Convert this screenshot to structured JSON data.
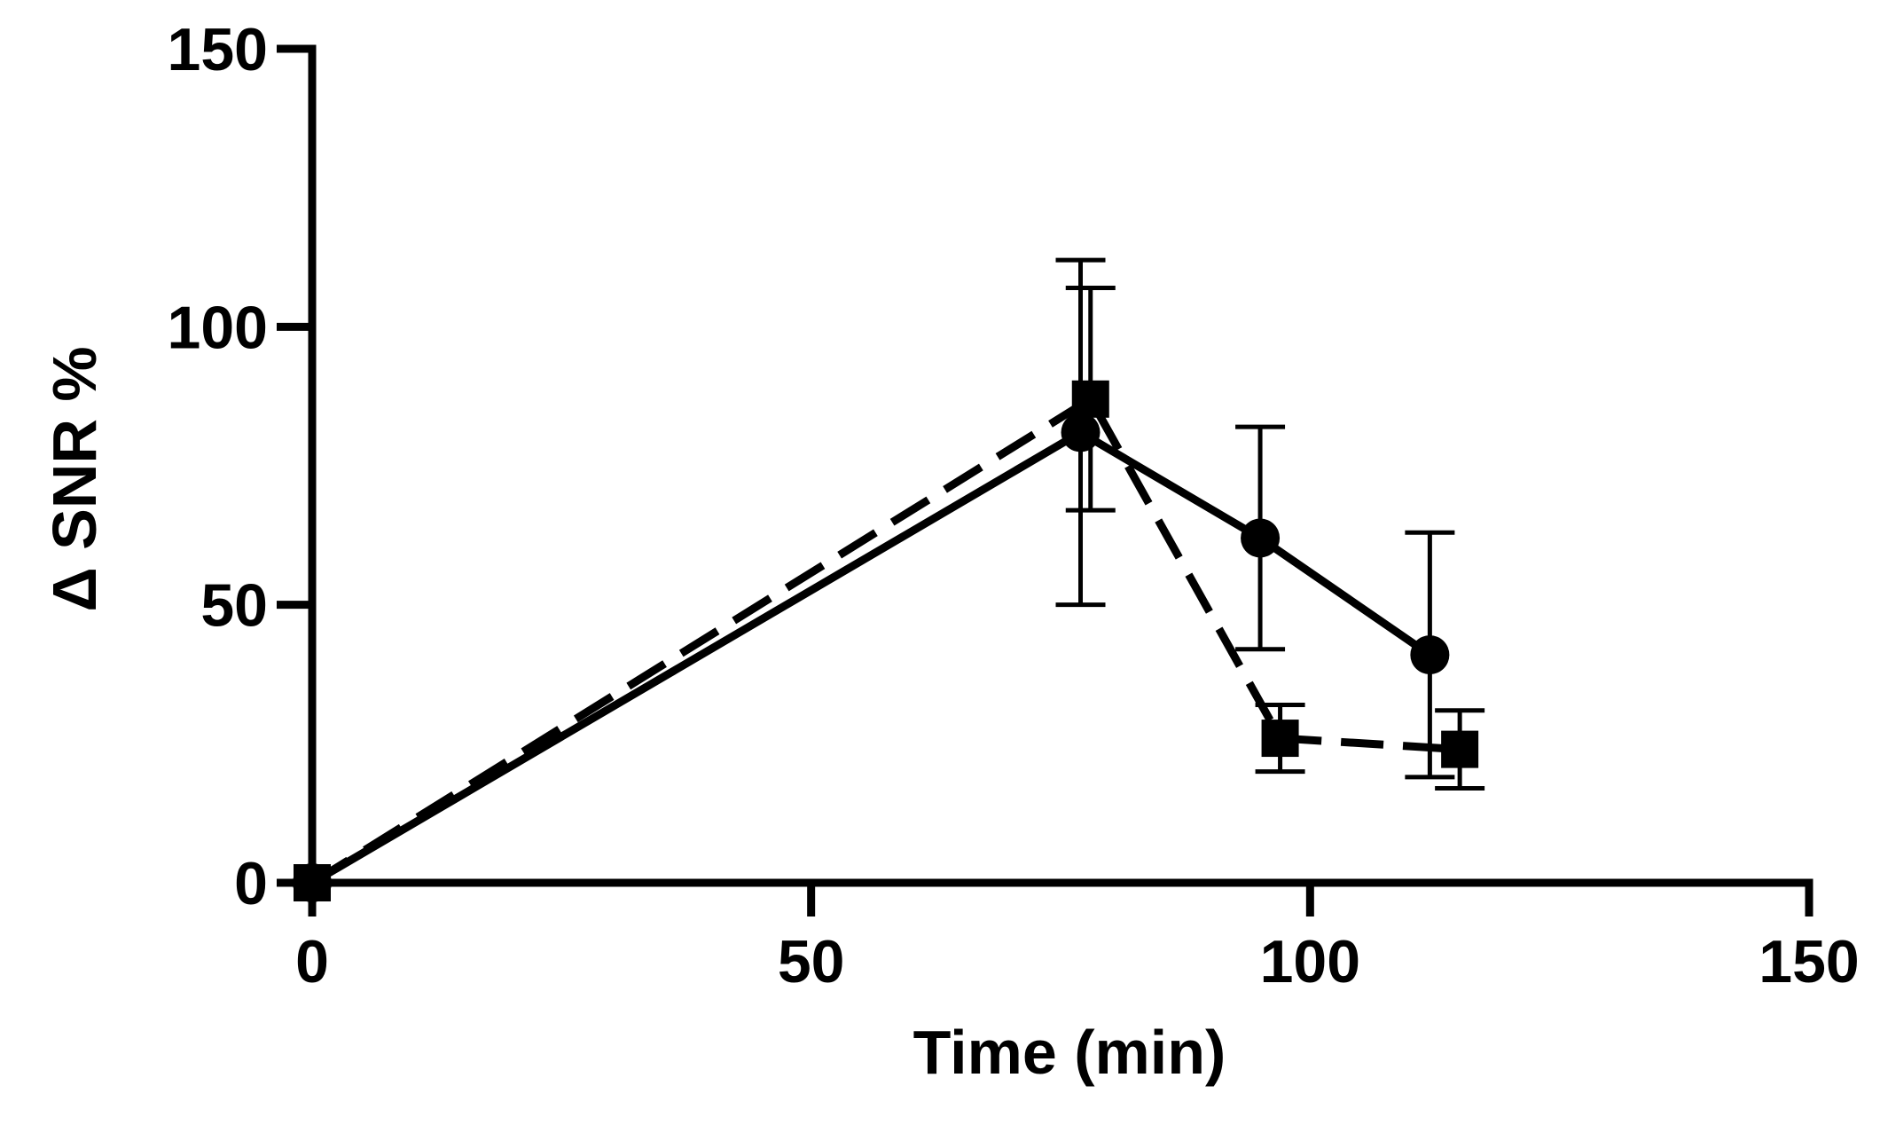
{
  "chart_data": {
    "type": "line",
    "title": "",
    "xlabel": "Time (min)",
    "ylabel": "Δ SNR %",
    "xlim": [
      0,
      150
    ],
    "ylim": [
      0,
      150
    ],
    "x_ticks": [
      0,
      50,
      100,
      150
    ],
    "y_ticks": [
      0,
      50,
      100,
      150
    ],
    "grid": false,
    "series": [
      {
        "marker": "circle",
        "line_style": "solid",
        "color": "#000000",
        "points": [
          {
            "x": 0,
            "y": 0,
            "err": 0
          },
          {
            "x": 77,
            "y": 81,
            "err": 31
          },
          {
            "x": 95,
            "y": 62,
            "err": 20
          },
          {
            "x": 112,
            "y": 41,
            "err": 22
          }
        ]
      },
      {
        "marker": "square",
        "line_style": "dashed",
        "color": "#000000",
        "points": [
          {
            "x": 0,
            "y": 0,
            "err": 0
          },
          {
            "x": 78,
            "y": 87,
            "err": 20
          },
          {
            "x": 97,
            "y": 26,
            "err": 6
          },
          {
            "x": 115,
            "y": 24,
            "err": 7
          }
        ]
      }
    ]
  }
}
